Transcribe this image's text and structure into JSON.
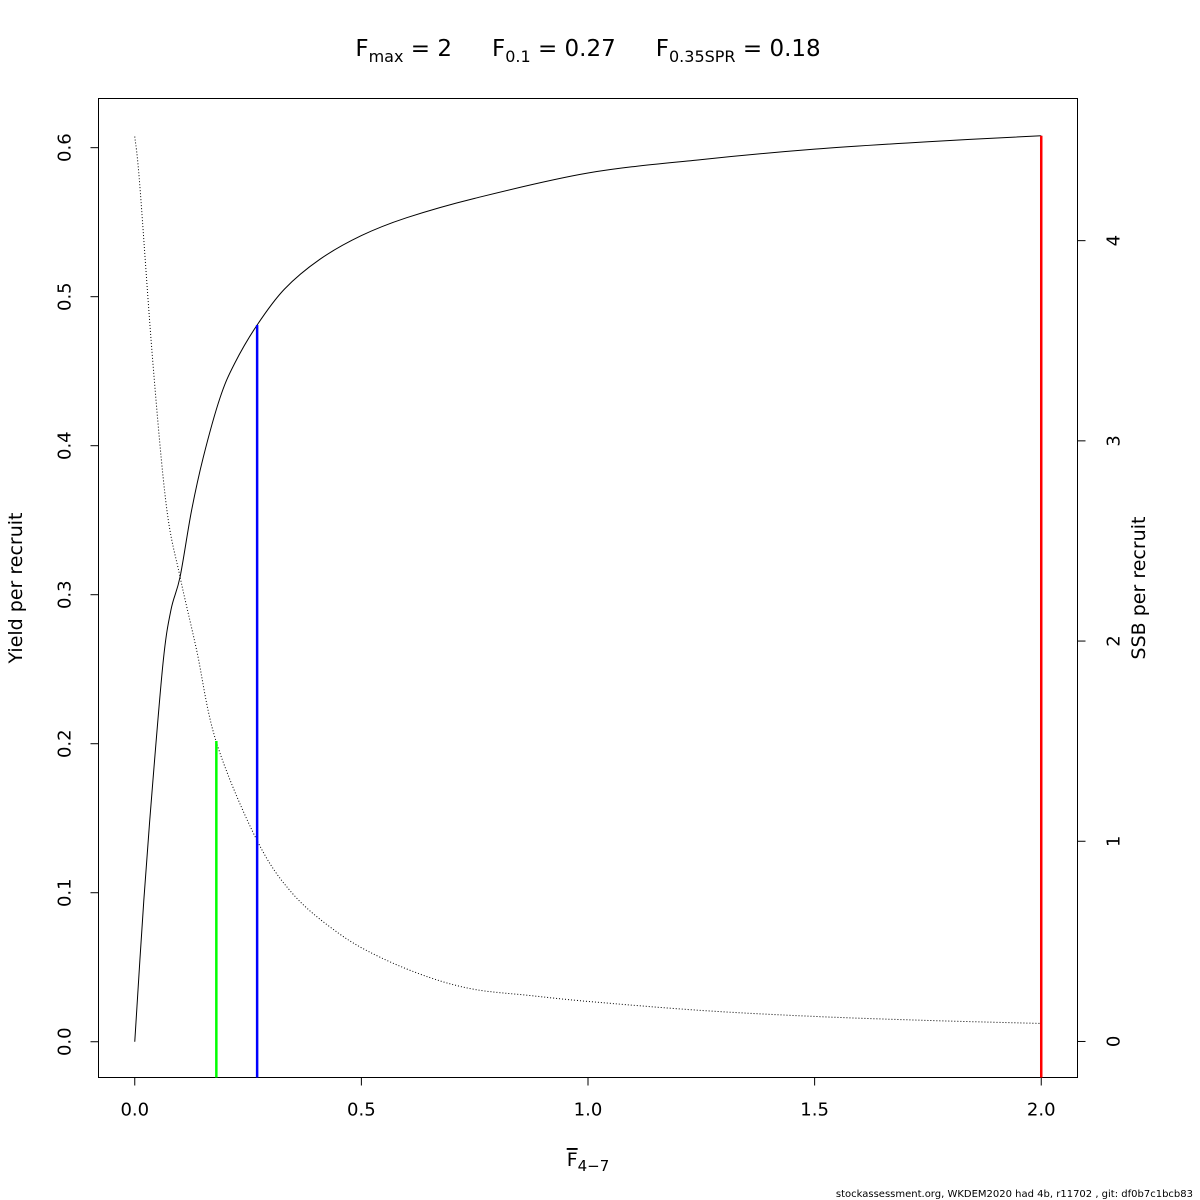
{
  "chart_data": {
    "type": "line",
    "title": {
      "parts": [
        {
          "base": "F",
          "sub": "max",
          "rest": " = 2"
        },
        {
          "base": "F",
          "sub": "0.1",
          "rest": " = 0.27"
        },
        {
          "base": "F",
          "sub": "0.35SPR",
          "rest": " = 0.18"
        }
      ]
    },
    "xlabel": {
      "base": "F",
      "sub": "4−7",
      "overline": true
    },
    "ylabel": "Yield per recruit",
    "y2label": "SSB per recruit",
    "xlim": [
      -0.08,
      2.08
    ],
    "ylim": [
      -0.024,
      0.633
    ],
    "y2lim": [
      -0.18,
      4.71
    ],
    "xticks": [
      "0.0",
      "0.5",
      "1.0",
      "1.5",
      "2.0"
    ],
    "yticks": [
      "0.0",
      "0.1",
      "0.2",
      "0.3",
      "0.4",
      "0.5",
      "0.6"
    ],
    "y2ticks": [
      "0",
      "1",
      "2",
      "3",
      "4"
    ],
    "grid": false,
    "series": [
      {
        "axis": "left",
        "style": "solid",
        "color": "#000000",
        "x": [
          0,
          0.02,
          0.04,
          0.063,
          0.08,
          0.1,
          0.125,
          0.151,
          0.188,
          0.22,
          0.27,
          0.33,
          0.408,
          0.5,
          0.6,
          0.75,
          1.0,
          1.25,
          1.5,
          1.75,
          2.0
        ],
        "y": [
          0,
          0.095,
          0.175,
          0.256,
          0.29,
          0.312,
          0.356,
          0.392,
          0.432,
          0.455,
          0.481,
          0.505,
          0.525,
          0.541,
          0.553,
          0.566,
          0.583,
          0.592,
          0.599,
          0.604,
          0.608
        ]
      },
      {
        "axis": "right",
        "style": "dotted",
        "color": "#000000",
        "x": [
          0,
          0.011,
          0.04,
          0.07,
          0.1,
          0.136,
          0.18,
          0.27,
          0.35,
          0.45,
          0.541,
          0.65,
          0.75,
          0.87,
          1.0,
          1.25,
          1.5,
          1.75,
          2.0
        ],
        "y": [
          4.52,
          4.28,
          3.39,
          2.67,
          2.32,
          1.96,
          1.495,
          1.003,
          0.734,
          0.54,
          0.421,
          0.32,
          0.26,
          0.23,
          0.2,
          0.155,
          0.125,
          0.105,
          0.09
        ]
      }
    ],
    "reference_lines": [
      {
        "label": "F0.35SPR",
        "x": 0.18,
        "y_top": 0.2018,
        "color": "#00ff00"
      },
      {
        "label": "F0.1",
        "x": 0.27,
        "y_top": 0.481,
        "color": "#0000ff"
      },
      {
        "label": "Fmax",
        "x": 2.0,
        "y_top": 0.608,
        "color": "#ff0000"
      }
    ]
  },
  "footer": "stockassessment.org, WKDEM2020  had  4b, r11702 , git: df0b7c1bcb83"
}
